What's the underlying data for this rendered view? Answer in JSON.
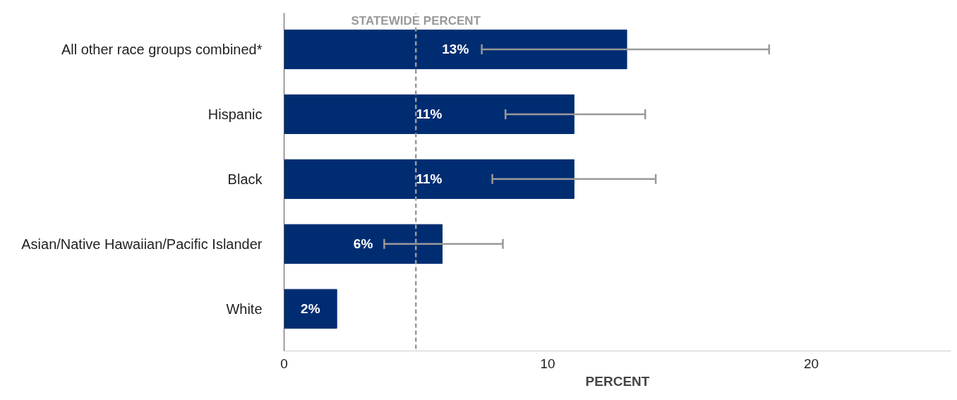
{
  "chart_data": {
    "type": "bar",
    "orientation": "horizontal",
    "xlabel": "PERCENT",
    "categories": [
      "All other race groups combined*",
      "Hispanic",
      "Black",
      "Asian/Native Hawaiian/Pacific Islander",
      "White"
    ],
    "values": [
      13,
      11,
      11,
      6,
      2
    ],
    "color": "#002d72",
    "value_labels": [
      "13%",
      "11%",
      "11%",
      "6%",
      "2%"
    ],
    "errors": [
      [
        7.5,
        18.4
      ],
      [
        8.4,
        13.7
      ],
      [
        7.9,
        14.1
      ],
      [
        3.8,
        8.3
      ],
      null
    ],
    "xlim": [
      0,
      25.3
    ],
    "xticks": [
      0,
      10,
      20
    ],
    "grid": false,
    "ref_lines": [
      {
        "axis": "x",
        "value": 5,
        "label": "STATEWIDE PERCENT",
        "color": "#999999",
        "line_style": "dashed"
      }
    ]
  }
}
